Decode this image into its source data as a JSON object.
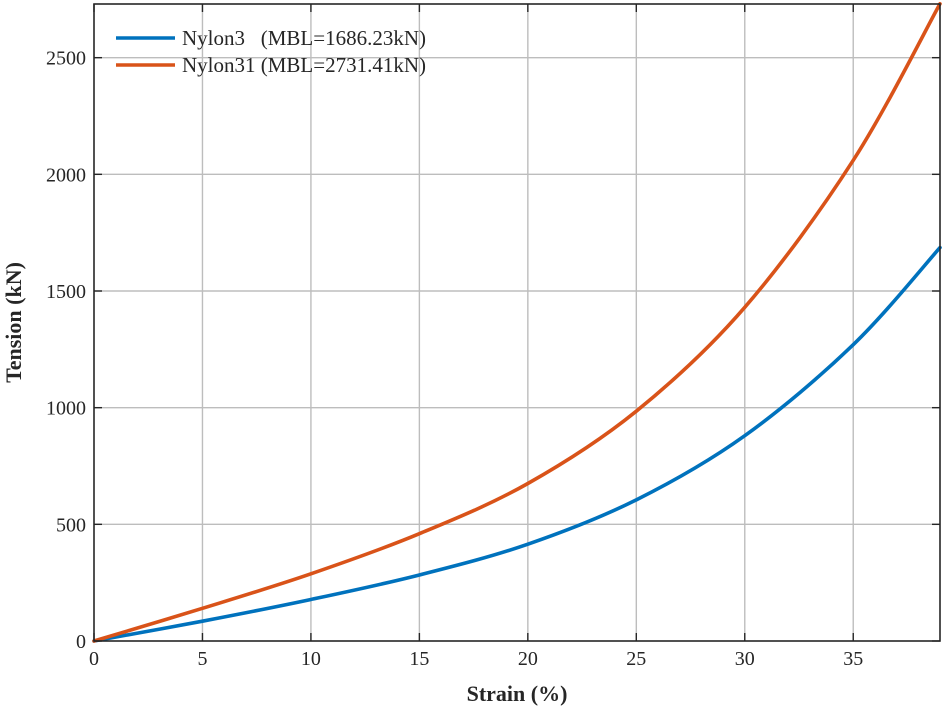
{
  "chart_data": {
    "type": "line",
    "title": "",
    "xlabel": "Strain (%)",
    "ylabel": "Tension (kN)",
    "xlim": [
      0,
      39
    ],
    "ylim": [
      0,
      2730
    ],
    "xticks": [
      0,
      5,
      10,
      15,
      20,
      25,
      30,
      35
    ],
    "yticks": [
      0,
      500,
      1000,
      1500,
      2000,
      2500
    ],
    "grid": true,
    "legend_position": "top-left",
    "series": [
      {
        "name": "Nylon3   (MBL=1686.23kN)",
        "color": "#0072BD",
        "x": [
          0,
          5,
          10,
          15,
          20,
          25,
          30,
          35,
          39
        ],
        "y": [
          0,
          85,
          178,
          283,
          415,
          605,
          880,
          1270,
          1686
        ]
      },
      {
        "name": "Nylon31 (MBL=2731.41kN)",
        "color": "#D95319",
        "x": [
          0,
          5,
          10,
          15,
          20,
          25,
          30,
          35,
          39
        ],
        "y": [
          0,
          140,
          288,
          460,
          675,
          985,
          1430,
          2060,
          2731
        ]
      }
    ]
  }
}
